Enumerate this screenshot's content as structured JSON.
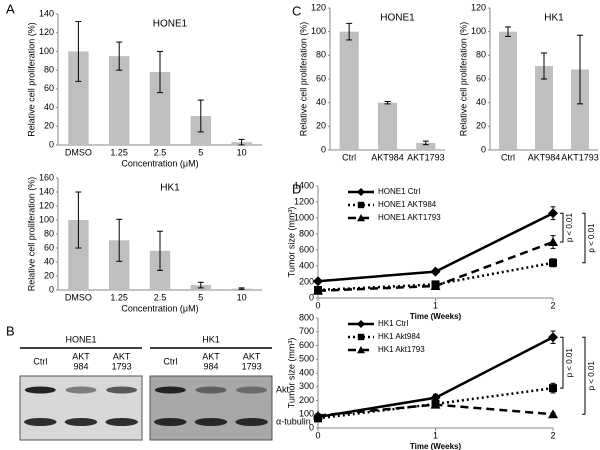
{
  "panel_labels": [
    "A",
    "B",
    "C",
    "D"
  ],
  "chart_data": [
    {
      "type": "bar",
      "title": "HONE1",
      "y_label": "Relative cell proliferation (%)",
      "x_label": "Concentration (μM)",
      "categories": [
        "DMSO",
        "1.25",
        "2.5",
        "5",
        "10"
      ],
      "values": [
        100,
        95,
        78,
        31,
        3
      ],
      "errors": [
        32,
        15,
        22,
        17,
        3
      ],
      "color": "#bfbfbf",
      "ylim": [
        0,
        140
      ],
      "yticks": [
        0,
        20,
        40,
        60,
        80,
        100,
        120,
        140
      ]
    },
    {
      "type": "bar",
      "title": "HK1",
      "y_label": "Relative cell proliferation (%)",
      "x_label": "Concentration (μM)",
      "categories": [
        "DMSO",
        "1.25",
        "2.5",
        "5",
        "10"
      ],
      "values": [
        100,
        71,
        56,
        7,
        2
      ],
      "errors": [
        40,
        30,
        28,
        4,
        1
      ],
      "color": "#bfbfbf",
      "ylim": [
        0,
        160
      ],
      "yticks": [
        0,
        20,
        40,
        60,
        80,
        100,
        120,
        140,
        160
      ]
    },
    {
      "type": "bar",
      "title": "HONE1",
      "y_label": "Relative cell proliferation (%)",
      "categories": [
        "Ctrl",
        "AKT984",
        "AKT1793"
      ],
      "values": [
        100,
        40,
        6
      ],
      "errors": [
        7,
        1,
        1.5
      ],
      "color": "#bfbfbf",
      "ylim": [
        0,
        120
      ],
      "yticks": [
        0,
        20,
        40,
        60,
        80,
        100,
        120
      ]
    },
    {
      "type": "bar",
      "title": "HK1",
      "y_label": "Relative cell proliferation (%)",
      "categories": [
        "Ctrl",
        "AKT984",
        "AKT1793"
      ],
      "values": [
        100,
        71,
        68
      ],
      "errors": [
        4,
        11,
        29
      ],
      "color": "#bfbfbf",
      "ylim": [
        0,
        120
      ],
      "yticks": [
        0,
        20,
        40,
        60,
        80,
        100,
        120
      ]
    },
    {
      "type": "line",
      "y_label": "Tumor size (mm³)",
      "x_label": "Time (Weeks)",
      "x": [
        0,
        1,
        2
      ],
      "xlim": [
        0,
        2
      ],
      "xticks": [
        0,
        1,
        2
      ],
      "ylim": [
        0,
        1400
      ],
      "yticks": [
        0,
        200,
        400,
        600,
        800,
        1000,
        1200,
        1400
      ],
      "series": [
        {
          "name": "HONE1 Ctrl",
          "color": "#000000",
          "dash": "solid",
          "marker": "diamond",
          "values": [
            210,
            330,
            1060
          ],
          "errors": [
            20,
            30,
            80
          ]
        },
        {
          "name": "HONE1 AKT984",
          "color": "#000000",
          "dash": "dotted",
          "marker": "square",
          "values": [
            100,
            170,
            440
          ],
          "errors": [
            15,
            20,
            50
          ]
        },
        {
          "name": "HONE1 AKT1793",
          "color": "#000000",
          "dash": "dashed",
          "marker": "triangle",
          "values": [
            90,
            150,
            700
          ],
          "errors": [
            15,
            20,
            80
          ]
        }
      ],
      "annotations": [
        "p < 0.01",
        "p < 0.01"
      ]
    },
    {
      "type": "line",
      "y_label": "Tumor size (mm³)",
      "x_label": "Time (Weeks)",
      "x": [
        0,
        1,
        2
      ],
      "xlim": [
        0,
        2
      ],
      "xticks": [
        0,
        1,
        2
      ],
      "ylim": [
        0,
        800
      ],
      "yticks": [
        0,
        100,
        200,
        300,
        400,
        500,
        600,
        700,
        800
      ],
      "series": [
        {
          "name": "HK1 Ctrl",
          "color": "#000000",
          "dash": "solid",
          "marker": "diamond",
          "values": [
            80,
            220,
            660
          ],
          "errors": [
            20,
            25,
            45
          ]
        },
        {
          "name": "HK1 Akt984",
          "color": "#000000",
          "dash": "dotted",
          "marker": "square",
          "values": [
            70,
            175,
            290
          ],
          "errors": [
            15,
            20,
            35
          ]
        },
        {
          "name": "HK1 Akt1793",
          "color": "#000000",
          "dash": "dashed",
          "marker": "triangle",
          "values": [
            90,
            170,
            100
          ],
          "errors": [
            15,
            20,
            10
          ]
        }
      ],
      "annotations": [
        "p < 0.01",
        "p < 0.01"
      ]
    }
  ],
  "blot": {
    "panels": [
      {
        "name": "HONE1",
        "lanes": [
          [
            "Ctrl"
          ],
          [
            "AKT",
            "984"
          ],
          [
            "AKT",
            "1793"
          ]
        ]
      },
      {
        "name": "HK1",
        "lanes": [
          [
            "Ctrl"
          ],
          [
            "AKT",
            "984"
          ],
          [
            "AKT",
            "1793"
          ]
        ]
      }
    ],
    "proteins": [
      "Akt",
      "α-tubulin"
    ]
  }
}
